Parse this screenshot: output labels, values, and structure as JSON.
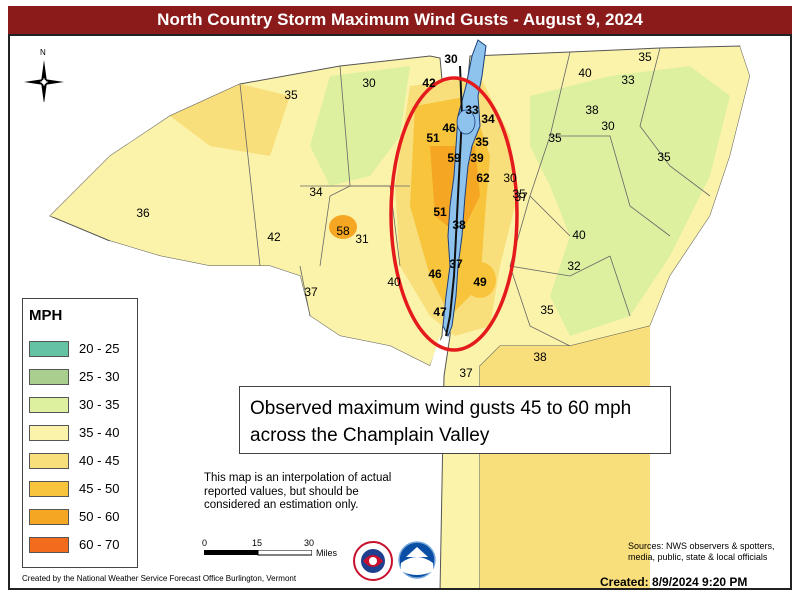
{
  "title": "North Country Storm Maximum Wind Gusts - August 9, 2024",
  "compass_label": "N",
  "legend": {
    "title": "MPH",
    "items": [
      {
        "label": "20 - 25",
        "color": "#66c2a5"
      },
      {
        "label": "25 - 30",
        "color": "#a9cf8f"
      },
      {
        "label": "30 - 35",
        "color": "#dcf0a0"
      },
      {
        "label": "35 - 40",
        "color": "#fbf3aa"
      },
      {
        "label": "40 - 45",
        "color": "#f9de7c"
      },
      {
        "label": "45 - 50",
        "color": "#f7c43c"
      },
      {
        "label": "50 - 60",
        "color": "#f5a623"
      },
      {
        "label": "60 - 70",
        "color": "#f36b1c"
      }
    ]
  },
  "annotation": "Observed maximum wind gusts 45 to 60 mph across the Champlain Valley",
  "disclaimer": "This map is an interpolation of actual reported values, but should be considered an estimation only.",
  "scale": {
    "ticks": [
      "0",
      "15",
      "30"
    ],
    "units": "Miles"
  },
  "sources": "Sources: NWS observers & spotters, media, public, state & local officials",
  "credit": "Created by the National Weather Service Forecast Office Burlington, Vermont",
  "created": "Created: 8/9/2024 9:20 PM",
  "gusts": [
    {
      "value": "35",
      "lake": false
    },
    {
      "value": "30",
      "lake": false
    },
    {
      "value": "30",
      "lake": true
    },
    {
      "value": "42",
      "lake": true
    },
    {
      "value": "33",
      "lake": true
    },
    {
      "value": "34",
      "lake": true
    },
    {
      "value": "46",
      "lake": true
    },
    {
      "value": "51",
      "lake": true
    },
    {
      "value": "35",
      "lake": true
    },
    {
      "value": "59",
      "lake": true
    },
    {
      "value": "39",
      "lake": true
    },
    {
      "value": "62",
      "lake": true
    },
    {
      "value": "30",
      "lake": false
    },
    {
      "value": "37",
      "lake": false
    },
    {
      "value": "34",
      "lake": false
    },
    {
      "value": "36",
      "lake": false
    },
    {
      "value": "42",
      "lake": false
    },
    {
      "value": "58",
      "lake": false
    },
    {
      "value": "31",
      "lake": false
    },
    {
      "value": "51",
      "lake": true
    },
    {
      "value": "38",
      "lake": true
    },
    {
      "value": "37",
      "lake": false
    },
    {
      "value": "40",
      "lake": false
    },
    {
      "value": "46",
      "lake": true
    },
    {
      "value": "37",
      "lake": true
    },
    {
      "value": "49",
      "lake": true
    },
    {
      "value": "47",
      "lake": true
    },
    {
      "value": "37",
      "lake": false
    },
    {
      "value": "35",
      "lake": false
    },
    {
      "value": "38",
      "lake": false
    },
    {
      "value": "40",
      "lake": false
    },
    {
      "value": "33",
      "lake": false
    },
    {
      "value": "35",
      "lake": false
    },
    {
      "value": "38",
      "lake": false
    },
    {
      "value": "30",
      "lake": false
    },
    {
      "value": "35",
      "lake": false
    },
    {
      "value": "35",
      "lake": false
    },
    {
      "value": "40",
      "lake": false
    },
    {
      "value": "32",
      "lake": false
    },
    {
      "value": "35",
      "lake": false
    }
  ]
}
